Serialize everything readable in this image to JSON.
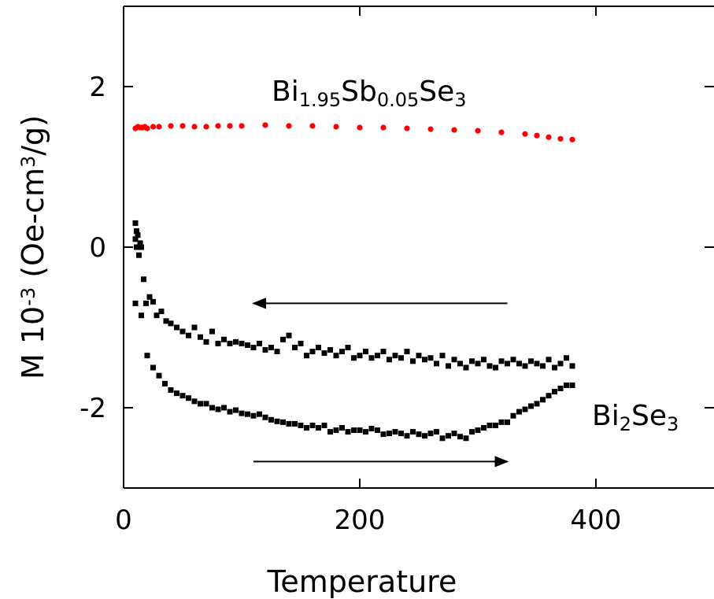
{
  "chart_data": {
    "type": "scatter",
    "title": "",
    "xlabel": "Temperature",
    "ylabel": {
      "base": "M 10",
      "exp": "-3",
      "unit_base": " (Oe-cm",
      "unit_exp": "3",
      "unit_tail": "/g)"
    },
    "xlim": [
      0,
      500
    ],
    "ylim": [
      -3,
      3
    ],
    "xticks": [
      0,
      200,
      400
    ],
    "xtick_labels": [
      "0",
      "200",
      "400"
    ],
    "yticks": [
      -2,
      0,
      2
    ],
    "ytick_labels": [
      "-2",
      "0",
      "2"
    ],
    "grid": false,
    "annotations": {
      "sb_label": {
        "parts": [
          [
            "Bi",
            ""
          ],
          [
            "1.95",
            "sub"
          ],
          [
            "Sb",
            ""
          ],
          [
            "0.05",
            "sub"
          ],
          [
            "Se",
            ""
          ],
          [
            "3",
            "sub"
          ]
        ]
      },
      "bi_label": {
        "parts": [
          [
            "Bi",
            ""
          ],
          [
            "2",
            "sub"
          ],
          [
            "Se",
            ""
          ],
          [
            "3",
            "sub"
          ]
        ]
      }
    },
    "arrows": [
      {
        "from": [
          325,
          -0.7
        ],
        "to": [
          110,
          -0.7
        ],
        "direction": "left"
      },
      {
        "from": [
          110,
          -2.67
        ],
        "to": [
          325,
          -2.67
        ],
        "direction": "right"
      }
    ],
    "series": [
      {
        "color": "#ff0000",
        "marker": "circle",
        "x": [
          10,
          12,
          14,
          16,
          18,
          20,
          25,
          30,
          40,
          50,
          60,
          70,
          80,
          90,
          100,
          120,
          140,
          160,
          180,
          200,
          220,
          240,
          260,
          280,
          300,
          320,
          340,
          350,
          360,
          370,
          380
        ],
        "y": [
          1.48,
          1.5,
          1.49,
          1.49,
          1.5,
          1.48,
          1.5,
          1.5,
          1.51,
          1.51,
          1.5,
          1.5,
          1.51,
          1.51,
          1.51,
          1.52,
          1.51,
          1.51,
          1.5,
          1.49,
          1.49,
          1.48,
          1.47,
          1.46,
          1.45,
          1.43,
          1.41,
          1.39,
          1.37,
          1.35,
          1.34
        ]
      },
      {
        "color": "#000000",
        "marker": "square",
        "x": [
          10,
          10,
          11,
          11,
          12,
          13,
          14,
          15,
          17,
          19,
          22,
          25,
          28,
          32,
          36,
          40,
          45,
          50,
          55,
          60,
          65,
          70,
          75,
          80,
          85,
          90,
          95,
          100,
          105,
          110,
          115,
          120,
          125,
          130,
          135,
          140,
          145,
          150,
          155,
          160,
          165,
          170,
          175,
          180,
          185,
          190,
          195,
          200,
          205,
          210,
          215,
          220,
          225,
          230,
          235,
          240,
          245,
          250,
          255,
          260,
          265,
          270,
          275,
          280,
          285,
          290,
          295,
          300,
          305,
          310,
          315,
          320,
          325,
          330,
          335,
          340,
          345,
          350,
          355,
          360,
          365,
          370,
          375,
          380
        ],
        "y": [
          0.3,
          0.1,
          0.2,
          0.0,
          0.15,
          -0.1,
          0.05,
          0.0,
          -0.4,
          -0.7,
          -0.62,
          -0.68,
          -0.85,
          -0.8,
          -0.92,
          -0.95,
          -1.0,
          -1.05,
          -1.1,
          -1.0,
          -1.12,
          -1.18,
          -1.05,
          -1.2,
          -1.15,
          -1.2,
          -1.18,
          -1.2,
          -1.22,
          -1.25,
          -1.2,
          -1.28,
          -1.25,
          -1.3,
          -1.15,
          -1.1,
          -1.25,
          -1.2,
          -1.35,
          -1.3,
          -1.25,
          -1.32,
          -1.28,
          -1.35,
          -1.3,
          -1.25,
          -1.38,
          -1.35,
          -1.3,
          -1.38,
          -1.35,
          -1.3,
          -1.4,
          -1.35,
          -1.38,
          -1.3,
          -1.42,
          -1.35,
          -1.4,
          -1.38,
          -1.45,
          -1.35,
          -1.48,
          -1.4,
          -1.45,
          -1.5,
          -1.42,
          -1.45,
          -1.4,
          -1.48,
          -1.5,
          -1.42,
          -1.45,
          -1.4,
          -1.45,
          -1.48,
          -1.42,
          -1.45,
          -1.48,
          -1.4,
          -1.5,
          -1.45,
          -1.38,
          -1.48
        ]
      },
      {
        "color": "#000000",
        "marker": "square",
        "x": [
          10,
          15,
          20,
          25,
          30,
          35,
          40,
          45,
          50,
          55,
          60,
          65,
          70,
          75,
          80,
          85,
          90,
          95,
          100,
          105,
          110,
          115,
          120,
          125,
          130,
          135,
          140,
          145,
          150,
          155,
          160,
          165,
          170,
          175,
          180,
          185,
          190,
          195,
          200,
          205,
          210,
          215,
          220,
          225,
          230,
          235,
          240,
          245,
          250,
          255,
          260,
          265,
          270,
          275,
          280,
          285,
          290,
          295,
          300,
          305,
          310,
          315,
          320,
          325,
          330,
          335,
          340,
          345,
          350,
          355,
          360,
          365,
          370,
          375,
          380
        ],
        "y": [
          -0.7,
          -0.85,
          -1.35,
          -1.5,
          -1.6,
          -1.7,
          -1.78,
          -1.82,
          -1.85,
          -1.88,
          -1.92,
          -1.95,
          -1.95,
          -2.0,
          -2.02,
          -2.0,
          -2.05,
          -2.03,
          -2.07,
          -2.08,
          -2.1,
          -2.08,
          -2.12,
          -2.15,
          -2.17,
          -2.18,
          -2.2,
          -2.2,
          -2.22,
          -2.25,
          -2.22,
          -2.25,
          -2.22,
          -2.3,
          -2.28,
          -2.25,
          -2.3,
          -2.28,
          -2.28,
          -2.3,
          -2.26,
          -2.28,
          -2.33,
          -2.32,
          -2.3,
          -2.32,
          -2.35,
          -2.3,
          -2.33,
          -2.35,
          -2.32,
          -2.3,
          -2.38,
          -2.35,
          -2.32,
          -2.36,
          -2.38,
          -2.3,
          -2.28,
          -2.25,
          -2.22,
          -2.22,
          -2.18,
          -2.18,
          -2.1,
          -2.05,
          -2.02,
          -1.98,
          -1.95,
          -1.9,
          -1.85,
          -1.8,
          -1.76,
          -1.72,
          -1.72
        ]
      }
    ]
  }
}
